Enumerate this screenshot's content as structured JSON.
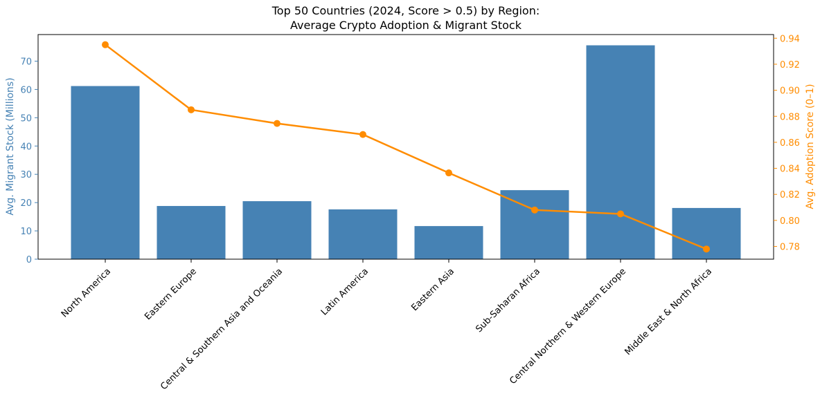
{
  "chart_data": {
    "type": "bar",
    "title_line1": "Top 50 Countries (2024, Score > 0.5) by Region:",
    "title_line2": "Average Crypto Adoption & Migrant Stock",
    "xlabel": "",
    "ylabel_left": "Avg. Migrant Stock (Millions)",
    "ylabel_right": "Avg. Adoption Score (0–1)",
    "categories": [
      "North America",
      "Eastern Europe",
      "Central & Southern Asia and Oceania",
      "Latin America",
      "Eastern Asia",
      "Sub-Saharan Africa",
      "Central Northern & Western Europe",
      "Middle East & North Africa"
    ],
    "series": [
      {
        "name": "Avg. Migrant Stock (Millions)",
        "type": "bar",
        "axis": "left",
        "color": "#4682b4",
        "values": [
          61.2,
          18.8,
          20.5,
          17.6,
          11.7,
          24.4,
          75.6,
          18.1
        ]
      },
      {
        "name": "Avg. Adoption Score (0–1)",
        "type": "line",
        "axis": "right",
        "color": "#ff8c00",
        "values": [
          0.935,
          0.885,
          0.8745,
          0.866,
          0.8365,
          0.808,
          0.805,
          0.778
        ]
      }
    ],
    "ylim_left": [
      0,
      79.4
    ],
    "ylim_right": [
      0.7702,
      0.9428
    ],
    "yticks_left": [
      0,
      10,
      20,
      30,
      40,
      50,
      60,
      70
    ],
    "yticks_right": [
      0.78,
      0.8,
      0.82,
      0.84,
      0.86,
      0.88,
      0.9,
      0.92,
      0.94
    ],
    "grid": false,
    "left_axis_color": "#4682b4",
    "right_axis_color": "#ff8c00"
  }
}
